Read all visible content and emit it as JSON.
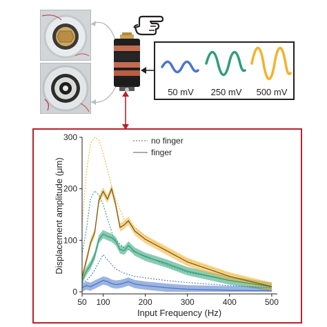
{
  "amplitudes": [
    {
      "label": "50 mV",
      "color": "#4a76c9"
    },
    {
      "label": "250 mV",
      "color": "#2f9e79"
    },
    {
      "label": "500 mV",
      "color": "#f2b330"
    }
  ],
  "icons": [
    "finger-pointing-icon",
    "arrow-icon"
  ],
  "chart_data": {
    "type": "line",
    "xlabel": "Input Frequency (Hz)",
    "ylabel": "Displacement amplitude (μm)",
    "xlim": [
      50,
      510
    ],
    "ylim": [
      0,
      300
    ],
    "xticks": [
      50,
      100,
      200,
      300,
      400,
      500
    ],
    "yticks": [
      0,
      100,
      200,
      300
    ],
    "legend": {
      "position": "top-center",
      "entries": [
        {
          "label": "no finger",
          "style": "dotted"
        },
        {
          "label": "finger",
          "style": "solid"
        }
      ]
    },
    "series": [
      {
        "drive": "50 mV",
        "condition": "no finger",
        "color": "#4a76c9",
        "x": [
          50,
          60,
          70,
          80,
          90,
          100,
          110,
          130,
          150,
          175,
          200,
          250,
          300,
          400,
          500
        ],
        "y": [
          18,
          22,
          30,
          42,
          58,
          72,
          62,
          44,
          36,
          30,
          27,
          22,
          18,
          12,
          8
        ]
      },
      {
        "drive": "50 mV",
        "condition": "finger",
        "color": "#4a76c9",
        "x": [
          50,
          60,
          70,
          80,
          90,
          100,
          110,
          120,
          130,
          140,
          150,
          160,
          175,
          200,
          250,
          300,
          400,
          500
        ],
        "y": [
          8,
          12,
          10,
          14,
          18,
          22,
          20,
          16,
          14,
          15,
          17,
          20,
          15,
          12,
          8,
          5,
          3,
          2
        ]
      },
      {
        "drive": "250 mV",
        "condition": "no finger",
        "color": "#2f9e79",
        "x": [
          50,
          60,
          70,
          80,
          90,
          100,
          110,
          125,
          150,
          175,
          200,
          250,
          300,
          400,
          500
        ],
        "y": [
          72,
          120,
          180,
          196,
          188,
          170,
          142,
          105,
          85,
          77,
          70,
          52,
          38,
          22,
          10
        ]
      },
      {
        "drive": "250 mV",
        "condition": "finger",
        "color": "#2f9e79",
        "x": [
          50,
          60,
          70,
          80,
          90,
          100,
          110,
          120,
          130,
          140,
          150,
          160,
          175,
          200,
          250,
          300,
          400,
          500
        ],
        "y": [
          22,
          40,
          52,
          70,
          102,
          112,
          108,
          105,
          98,
          82,
          80,
          90,
          78,
          68,
          55,
          40,
          22,
          10
        ]
      },
      {
        "drive": "500 mV",
        "condition": "no finger",
        "color": "#f2b330",
        "x": [
          50,
          60,
          70,
          80,
          90,
          100,
          110,
          125,
          150,
          175,
          200,
          250,
          300,
          400,
          500
        ],
        "y": [
          130,
          230,
          288,
          300,
          295,
          268,
          238,
          190,
          140,
          125,
          108,
          82,
          62,
          35,
          12
        ]
      },
      {
        "drive": "500 mV",
        "condition": "finger",
        "color": "#a87a22",
        "x": [
          50,
          60,
          70,
          80,
          90,
          100,
          110,
          120,
          130,
          140,
          150,
          160,
          175,
          200,
          250,
          300,
          400,
          500
        ],
        "y": [
          28,
          60,
          95,
          115,
          178,
          195,
          180,
          200,
          168,
          125,
          130,
          138,
          118,
          102,
          80,
          58,
          30,
          10
        ]
      }
    ]
  }
}
